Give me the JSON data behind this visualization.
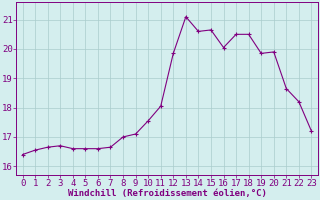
{
  "x": [
    0,
    1,
    2,
    3,
    4,
    5,
    6,
    7,
    8,
    9,
    10,
    11,
    12,
    13,
    14,
    15,
    16,
    17,
    18,
    19,
    20,
    21,
    22,
    23
  ],
  "y": [
    16.4,
    16.55,
    16.65,
    16.7,
    16.6,
    16.6,
    16.6,
    16.65,
    17.0,
    17.1,
    17.55,
    18.05,
    19.85,
    21.1,
    20.6,
    20.65,
    20.05,
    20.5,
    20.5,
    19.85,
    19.9,
    18.65,
    18.2,
    17.2
  ],
  "line_color": "#800080",
  "marker": "+",
  "marker_size": 3,
  "marker_linewidth": 0.8,
  "bg_color": "#d4eeee",
  "grid_color": "#aacccc",
  "xlabel": "Windchill (Refroidissement éolien,°C)",
  "xlabel_fontsize": 6.5,
  "xlabel_fontweight": "bold",
  "xtick_labels": [
    "0",
    "1",
    "2",
    "3",
    "4",
    "5",
    "6",
    "7",
    "8",
    "9",
    "10",
    "11",
    "12",
    "13",
    "14",
    "15",
    "16",
    "17",
    "18",
    "19",
    "20",
    "21",
    "22",
    "23"
  ],
  "ytick_labels": [
    "16",
    "17",
    "18",
    "19",
    "20",
    "21"
  ],
  "yticks": [
    16,
    17,
    18,
    19,
    20,
    21
  ],
  "ylim": [
    15.7,
    21.6
  ],
  "xlim": [
    -0.5,
    23.5
  ],
  "tick_fontsize": 6.5,
  "tick_color": "#800080",
  "line_width": 0.8
}
